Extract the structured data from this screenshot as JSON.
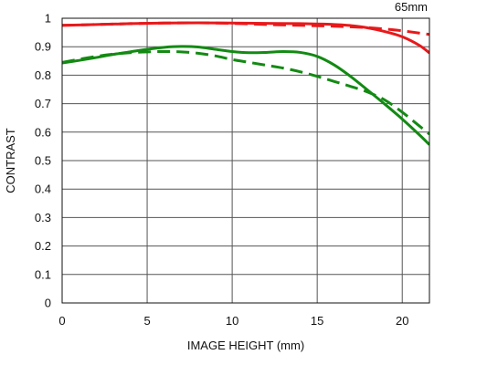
{
  "chart_data": {
    "type": "line",
    "title": "",
    "corner_label": "65mm",
    "xlabel": "IMAGE HEIGHT (mm)",
    "ylabel": "CONTRAST",
    "xlim": [
      0,
      21.6
    ],
    "ylim": [
      0,
      1
    ],
    "x_ticks": [
      0,
      5,
      10,
      15,
      20
    ],
    "x_tick_labels": [
      "0",
      "5",
      "10",
      "15",
      "20"
    ],
    "y_ticks": [
      0,
      0.1,
      0.2,
      0.3,
      0.4,
      0.5,
      0.6,
      0.7,
      0.8,
      0.9,
      1
    ],
    "y_tick_labels": [
      "0",
      "0.1",
      "0.2",
      "0.3",
      "0.4",
      "0.5",
      "0.6",
      "0.7",
      "0.8",
      "0.9",
      "1"
    ],
    "grid": true,
    "legend": "none",
    "colors": {
      "red": "#e8191b",
      "green": "#138a13",
      "grid": "#555555",
      "axis": "#111111"
    },
    "series": [
      {
        "color": "red",
        "dash": "solid",
        "x": [
          0,
          2,
          4,
          6,
          8,
          10,
          12,
          14,
          16,
          17,
          18,
          19,
          20,
          21,
          21.6
        ],
        "y": [
          0.975,
          0.978,
          0.981,
          0.983,
          0.984,
          0.983,
          0.982,
          0.981,
          0.978,
          0.974,
          0.966,
          0.953,
          0.935,
          0.905,
          0.878
        ]
      },
      {
        "color": "red",
        "dash": "dashed",
        "x": [
          0,
          2,
          4,
          6,
          8,
          10,
          12,
          14,
          16,
          18,
          19,
          20,
          21,
          21.6
        ],
        "y": [
          0.975,
          0.978,
          0.981,
          0.983,
          0.984,
          0.982,
          0.978,
          0.975,
          0.972,
          0.967,
          0.962,
          0.956,
          0.948,
          0.943
        ]
      },
      {
        "color": "green",
        "dash": "solid",
        "x": [
          0,
          1,
          2,
          3,
          4,
          5,
          6,
          7,
          8,
          9,
          10,
          11,
          12,
          13,
          14,
          15,
          16,
          17,
          18,
          19,
          20,
          21,
          21.6
        ],
        "y": [
          0.843,
          0.852,
          0.862,
          0.873,
          0.882,
          0.891,
          0.898,
          0.901,
          0.899,
          0.891,
          0.883,
          0.879,
          0.88,
          0.883,
          0.88,
          0.866,
          0.836,
          0.794,
          0.746,
          0.697,
          0.646,
          0.591,
          0.556
        ]
      },
      {
        "color": "green",
        "dash": "dashed",
        "x": [
          0,
          1,
          2,
          3,
          4,
          5,
          6,
          7,
          8,
          9,
          10,
          11,
          12,
          13,
          14,
          15,
          16,
          17,
          18,
          19,
          20,
          21,
          21.6
        ],
        "y": [
          0.845,
          0.856,
          0.866,
          0.874,
          0.879,
          0.882,
          0.883,
          0.882,
          0.877,
          0.868,
          0.855,
          0.845,
          0.835,
          0.825,
          0.812,
          0.796,
          0.778,
          0.76,
          0.74,
          0.712,
          0.67,
          0.622,
          0.593
        ]
      }
    ]
  }
}
